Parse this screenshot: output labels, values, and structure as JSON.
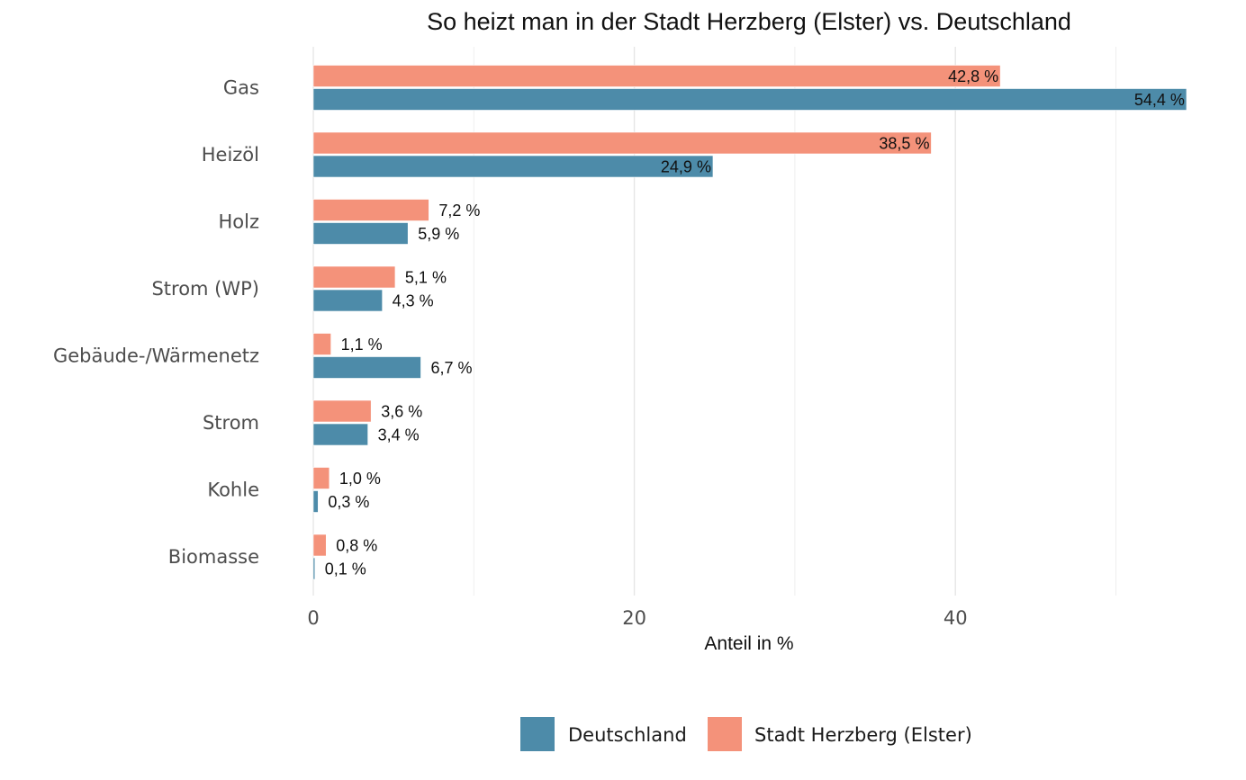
{
  "chart_data": {
    "type": "bar",
    "orientation": "horizontal",
    "title": "So heizt man in der Stadt Herzberg (Elster) vs. Deutschland",
    "xlabel": "Anteil in %",
    "ylabel": "",
    "xlim": [
      0,
      55
    ],
    "x_ticks": [
      0,
      20,
      40
    ],
    "x_tick_labels": [
      "0",
      "20",
      "40"
    ],
    "minor_gridlines": [
      10,
      30,
      50
    ],
    "grid": true,
    "categories": [
      "Gas",
      "Heizöl",
      "Holz",
      "Strom (WP)",
      "Gebäude-/Wärmenetz",
      "Strom",
      "Kohle",
      "Biomasse"
    ],
    "series": [
      {
        "name": "Stadt Herzberg (Elster)",
        "color": "#F4927A",
        "values": [
          42.8,
          38.5,
          7.2,
          5.1,
          1.1,
          3.6,
          1.0,
          0.8
        ],
        "labels": [
          "42,8 %",
          "38,5 %",
          "7,2 %",
          "5,1 %",
          "1,1 %",
          "3,6 %",
          "1,0 %",
          "0,8 %"
        ]
      },
      {
        "name": "Deutschland",
        "color": "#4D8BA9",
        "values": [
          54.4,
          24.9,
          5.9,
          4.3,
          6.7,
          3.4,
          0.3,
          0.1
        ],
        "labels": [
          "54,4 %",
          "24,9 %",
          "5,9 %",
          "4,3 %",
          "6,7 %",
          "3,4 %",
          "0,3 %",
          "0,1 %"
        ]
      }
    ],
    "legend": {
      "position": "bottom",
      "entries": [
        {
          "label": "Deutschland",
          "color": "#4D8BA9"
        },
        {
          "label": "Stadt Herzberg (Elster)",
          "color": "#F4927A"
        }
      ]
    }
  }
}
